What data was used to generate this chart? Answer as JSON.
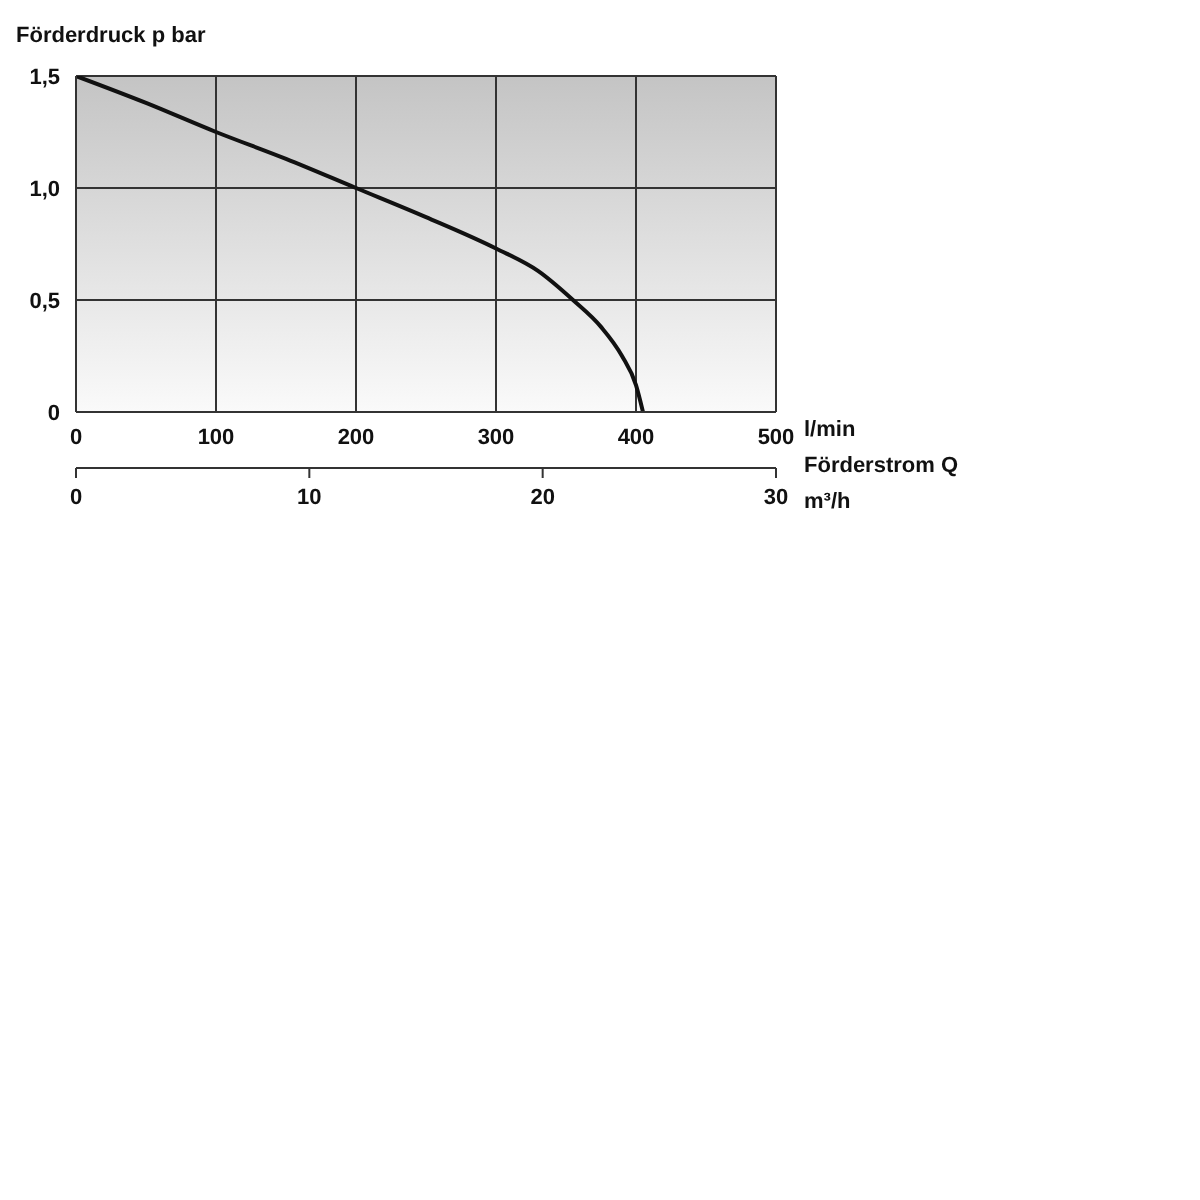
{
  "chart_data": {
    "type": "line",
    "ylabel": "Förderdruck p bar",
    "xlabel": "l/min",
    "x2label": "m³/h",
    "annotations": [
      "Förderstrom Q"
    ],
    "x": [
      0,
      50,
      100,
      150,
      200,
      250,
      300,
      330,
      355,
      375,
      390,
      400,
      405
    ],
    "series": [
      {
        "color": "#111111",
        "values": [
          1.5,
          1.38,
          1.25,
          1.13,
          1.0,
          0.87,
          0.73,
          0.63,
          0.5,
          0.38,
          0.25,
          0.12,
          0
        ]
      }
    ],
    "xlim": [
      0,
      500
    ],
    "xticks": [
      0,
      100,
      200,
      300,
      400,
      500
    ],
    "ylim": [
      0,
      1.5
    ],
    "yticks": [
      {
        "value": 0,
        "label": "0"
      },
      {
        "value": 0.5,
        "label": "0,5"
      },
      {
        "value": 1,
        "label": "1,0"
      },
      {
        "value": 1.5,
        "label": "1,5"
      }
    ],
    "x2lim": [
      0,
      30
    ],
    "x2ticks": [
      0,
      10,
      20,
      30
    ],
    "grid": true,
    "legend": false,
    "marker": "none",
    "line_style": "solid"
  }
}
